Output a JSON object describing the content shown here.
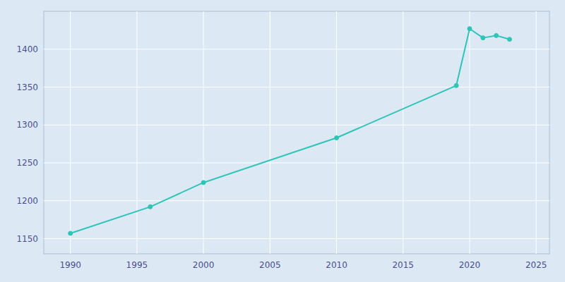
{
  "chart_data": {
    "type": "line",
    "x": [
      1990,
      1996,
      2000,
      2010,
      2019,
      2020,
      2021,
      2022,
      2023
    ],
    "values": [
      1157,
      1192,
      1224,
      1283,
      1352,
      1427,
      1415,
      1418,
      1413
    ],
    "color": "#2ec4b6",
    "marker": "circle",
    "xlim": [
      1988,
      2026
    ],
    "ylim": [
      1130,
      1450
    ],
    "xticks": [
      1990,
      1995,
      2000,
      2005,
      2010,
      2015,
      2020,
      2025
    ],
    "yticks": [
      1150,
      1200,
      1250,
      1300,
      1350,
      1400
    ],
    "grid": true
  }
}
